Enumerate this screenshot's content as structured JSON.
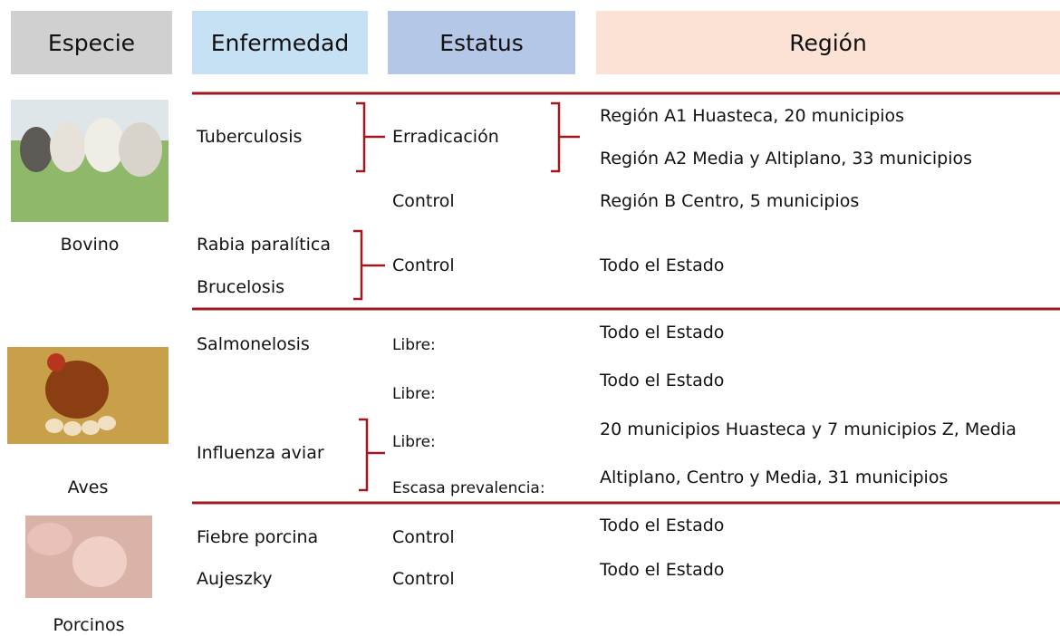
{
  "header": [
    "Especie",
    "Enfermedad",
    "Estatus",
    "Región"
  ],
  "sections": [
    {
      "species": "Bovino",
      "diseases": [
        "Tuberculosis",
        "Rabia paralítica",
        "Brucelosis"
      ],
      "statuses": [
        "Erradicación",
        "Control",
        "Control"
      ],
      "regions": [
        "Región A1 Huasteca, 20 municipios",
        "Región A2 Media y Altiplano, 33 municipios",
        "Región B Centro, 5 municipios",
        "Todo el Estado"
      ]
    },
    {
      "species": "Aves",
      "diseases": [
        "Salmonelosis",
        "Influenza aviar"
      ],
      "statuses": [
        "Libre:",
        "Libre:",
        "Libre:",
        "Escasa prevalencia:"
      ],
      "regions": [
        "Todo el Estado",
        "Todo el Estado",
        "20 municipios Huasteca y 7 municipios Z, Media",
        "Altiplano, Centro y Media, 31 municipios"
      ]
    },
    {
      "species": "Porcinos",
      "diseases": [
        "Fiebre porcina",
        "Aujeszky"
      ],
      "statuses": [
        "Control",
        "Control"
      ],
      "regions": [
        "Todo el Estado",
        "Todo el Estado"
      ]
    }
  ]
}
